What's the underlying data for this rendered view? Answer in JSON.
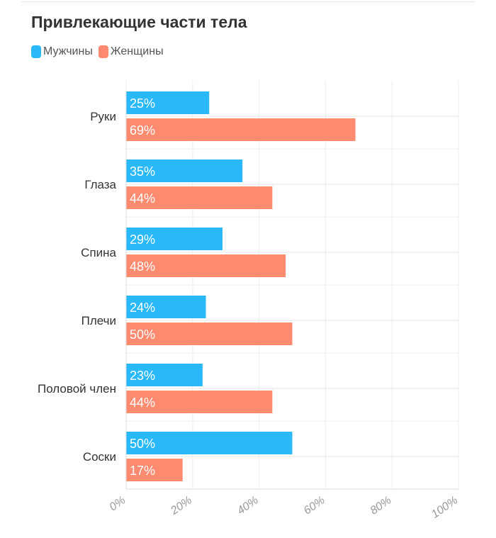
{
  "colors": {
    "men": "#29b9fb",
    "women": "#fe8a6f"
  },
  "chart_data": {
    "type": "bar",
    "orientation": "horizontal",
    "title": "Привлекающие части тела",
    "categories": [
      "Руки",
      "Глаза",
      "Спина",
      "Плечи",
      "Половой член",
      "Соски"
    ],
    "series": [
      {
        "name": "Мужчины",
        "values": [
          25,
          35,
          29,
          24,
          23,
          50
        ]
      },
      {
        "name": "Женщины",
        "values": [
          69,
          44,
          48,
          50,
          44,
          17
        ]
      }
    ],
    "value_labels": {
      "Мужчины": [
        "25%",
        "35%",
        "29%",
        "24%",
        "23%",
        "50%"
      ],
      "Женщины": [
        "69%",
        "44%",
        "48%",
        "50%",
        "44%",
        "17%"
      ]
    },
    "xlim": [
      0,
      100
    ],
    "xticks": [
      "0%",
      "20%",
      "40%",
      "60%",
      "80%",
      "100%"
    ],
    "legend": "top-left",
    "grid": true
  }
}
